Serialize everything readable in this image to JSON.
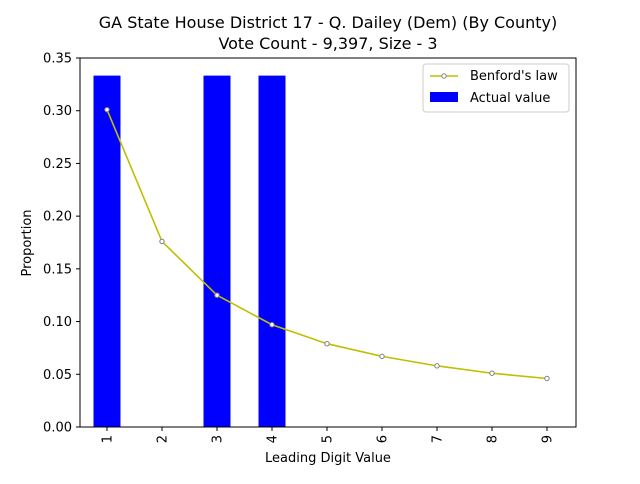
{
  "chart_data": {
    "type": "bar",
    "title_line1": "GA State House District 17 - Q. Dailey (Dem) (By County)",
    "title_line2": "Vote Count - 9,397, Size - 3",
    "xlabel": "Leading Digit Value",
    "ylabel": "Proportion",
    "categories": [
      "1",
      "2",
      "3",
      "4",
      "5",
      "6",
      "7",
      "8",
      "9"
    ],
    "ylim": [
      0,
      0.35
    ],
    "yticks": [
      "0.00",
      "0.05",
      "0.10",
      "0.15",
      "0.20",
      "0.25",
      "0.30",
      "0.35"
    ],
    "grid": false,
    "legend_position": "top-right",
    "series": [
      {
        "name": "Benford's law",
        "kind": "line",
        "color": "#bfbf00",
        "marker_edge": "#808080",
        "values": [
          0.301,
          0.176,
          0.125,
          0.097,
          0.079,
          0.067,
          0.058,
          0.051,
          0.046
        ]
      },
      {
        "name": "Actual value",
        "kind": "bar",
        "color": "#0000ff",
        "values": [
          0.3333,
          0,
          0.3333,
          0.3333,
          0,
          0,
          0,
          0,
          0
        ]
      }
    ]
  }
}
